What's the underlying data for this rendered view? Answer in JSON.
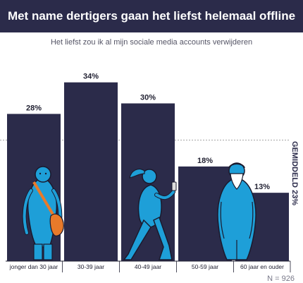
{
  "title": "Met name dertigers gaan het liefst helemaal offline",
  "subtitle": "Het liefst zou ik al mijn sociale media accounts verwijderen",
  "sample_note": "N = 926",
  "colors": {
    "bar": "#2b2b4a",
    "figure": "#1e9fd8",
    "bag": "#e87a2a",
    "header": "#2b2b4a"
  },
  "chart_data": {
    "type": "bar",
    "categories": [
      "jonger dan 30 jaar",
      "30-39 jaar",
      "40-49 jaar",
      "50-59 jaar",
      "60 jaar en ouder"
    ],
    "values": [
      28,
      34,
      30,
      18,
      13
    ],
    "value_labels": [
      "28%",
      "34%",
      "30%",
      "18%",
      "13%"
    ],
    "average": 23,
    "average_label": "GEMIDDELD 23%",
    "ylim": [
      0,
      40
    ],
    "grid": false
  }
}
